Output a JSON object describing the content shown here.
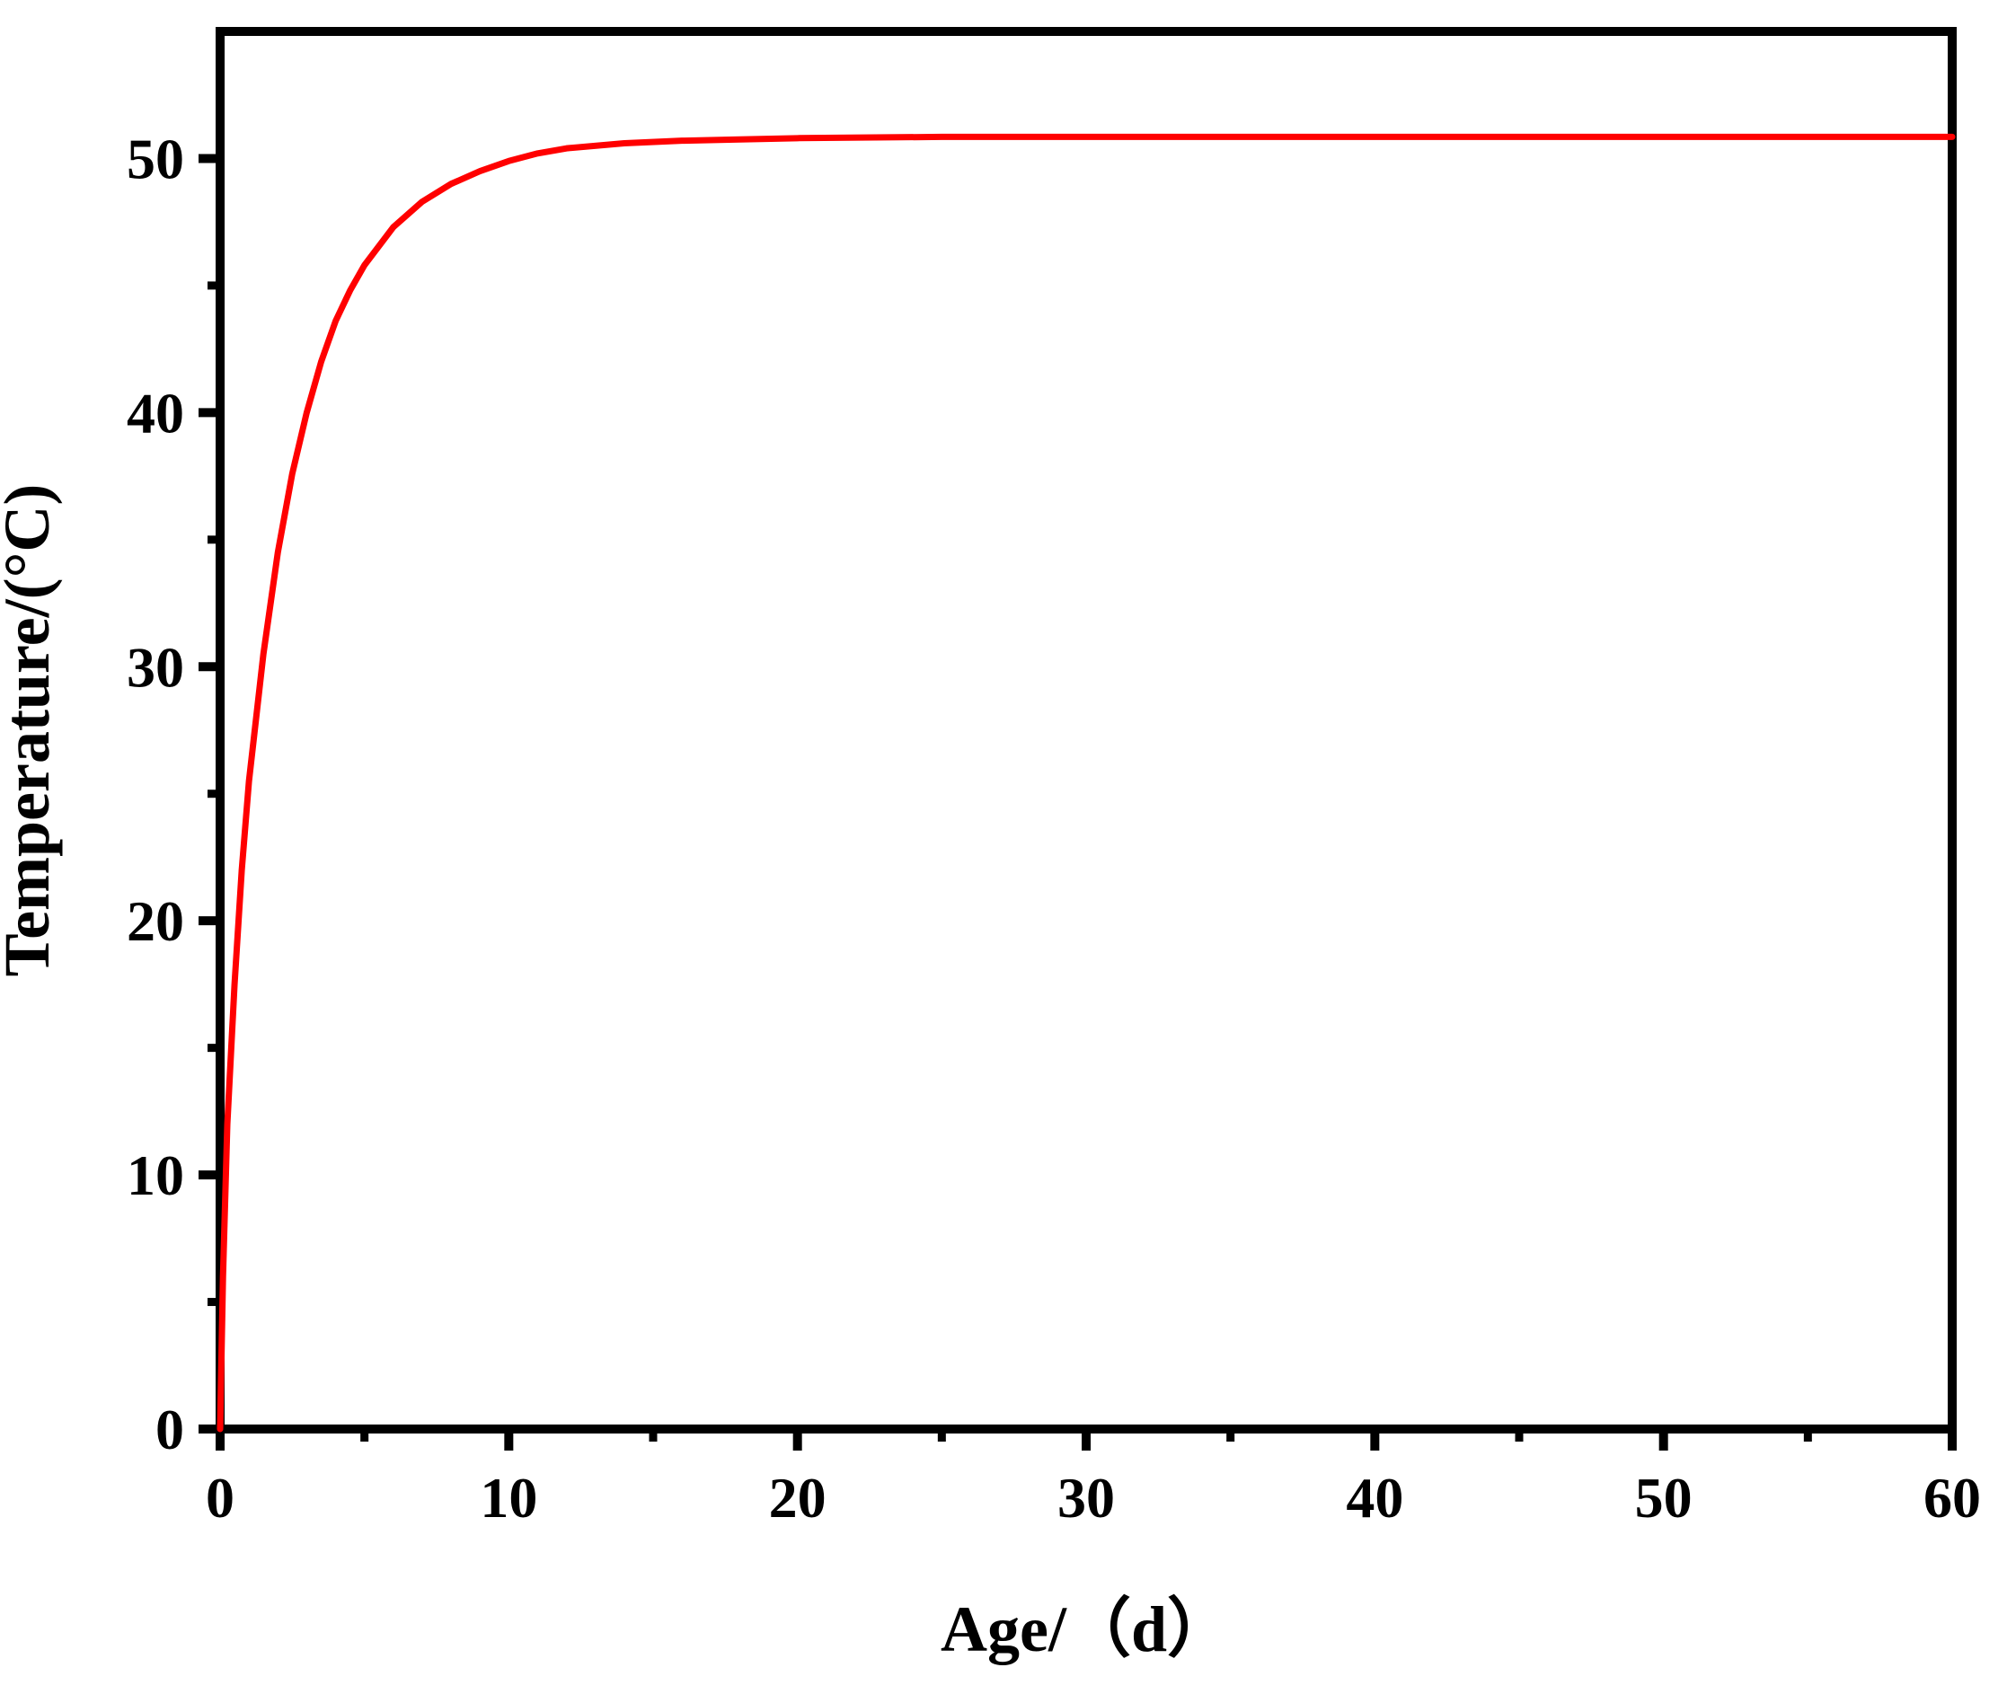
{
  "chart_data": {
    "type": "line",
    "title": "",
    "xlabel": "Age/（d）",
    "ylabel": "Temperature/(°C)",
    "xlim": [
      0,
      60
    ],
    "ylim": [
      0,
      55
    ],
    "xticks": [
      0,
      10,
      20,
      30,
      40,
      50,
      60
    ],
    "yticks": [
      0,
      10,
      20,
      30,
      40,
      50
    ],
    "xtick_labels": [
      "0",
      "10",
      "20",
      "30",
      "40",
      "50",
      "60"
    ],
    "ytick_labels": [
      "0",
      "10",
      "20",
      "30",
      "40",
      "50"
    ],
    "grid": false,
    "legend": "none",
    "series": [
      {
        "color": "#ff0000",
        "x": [
          0,
          0.1,
          0.25,
          0.5,
          0.75,
          1,
          1.5,
          2,
          2.5,
          3,
          3.5,
          4,
          4.5,
          5,
          6,
          7,
          8,
          9,
          10,
          11,
          12,
          14,
          16,
          18,
          20,
          25,
          30,
          35,
          40,
          45,
          50,
          55,
          60
        ],
        "y": [
          0,
          6,
          12,
          17.5,
          22,
          25.5,
          30.5,
          34.5,
          37.6,
          40,
          42,
          43.6,
          44.8,
          45.8,
          47.3,
          48.3,
          49,
          49.5,
          49.9,
          50.2,
          50.4,
          50.6,
          50.7,
          50.75,
          50.8,
          50.85,
          50.85,
          50.85,
          50.85,
          50.85,
          50.85,
          50.85,
          50.85
        ]
      }
    ]
  }
}
